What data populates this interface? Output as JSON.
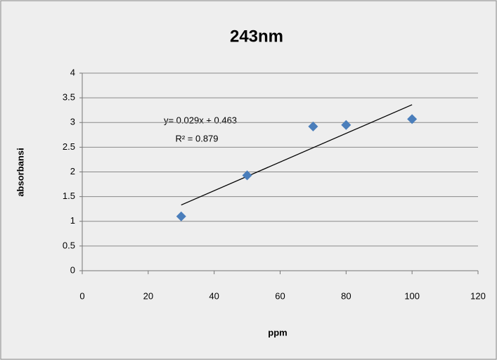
{
  "chart_data": {
    "type": "scatter",
    "title": "243nm",
    "x_label": "ppm",
    "y_label": "absorbansi",
    "x": [
      30,
      50,
      70,
      80,
      100
    ],
    "values": [
      1.1,
      1.93,
      2.92,
      2.95,
      3.07
    ],
    "color": "#4a7ebb",
    "trendline": {
      "x": [
        30,
        100
      ],
      "values": [
        1.33,
        3.36
      ],
      "color": "#000000"
    },
    "annotations": [
      "y= 0.029x + 0.463",
      "R² = 0.879"
    ],
    "xlim": [
      0,
      120
    ],
    "xticks": [
      0,
      20,
      40,
      60,
      80,
      100,
      120
    ],
    "ylim": [
      0,
      4
    ],
    "yticks": [
      0,
      0.5,
      1,
      1.5,
      2,
      2.5,
      3,
      3.5,
      4
    ],
    "grid": true
  }
}
